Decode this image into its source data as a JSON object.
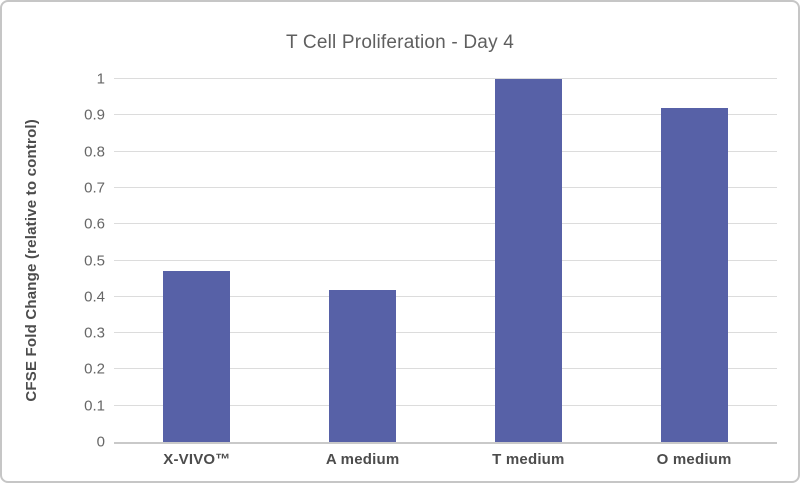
{
  "chart_data": {
    "type": "bar",
    "title": "T Cell Proliferation - Day 4",
    "ylabel": "CFSE Fold Change (relative to control)",
    "xlabel": "",
    "categories": [
      "X-VIVO™",
      "A medium",
      "T medium",
      "O medium"
    ],
    "values": [
      0.47,
      0.42,
      1.0,
      0.92
    ],
    "ylim": [
      0,
      1
    ],
    "y_ticks": [
      0,
      0.1,
      0.2,
      0.3,
      0.4,
      0.5,
      0.6,
      0.7,
      0.8,
      0.9,
      1
    ],
    "y_tick_labels": [
      "0",
      "0.1",
      "0.2",
      "0.3",
      "0.4",
      "0.5",
      "0.6",
      "0.7",
      "0.8",
      "0.9",
      "1"
    ],
    "grid": true,
    "legend": false,
    "colors": {
      "bar": "#5761a7",
      "title_text": "#5f5f5f",
      "axis_text": "#4c4c4c",
      "tick_text": "#666666",
      "gridline": "#dcdcdc",
      "axis_line": "#c9c9c9",
      "card_border": "#c6c6c6",
      "background": "#ffffff"
    }
  }
}
